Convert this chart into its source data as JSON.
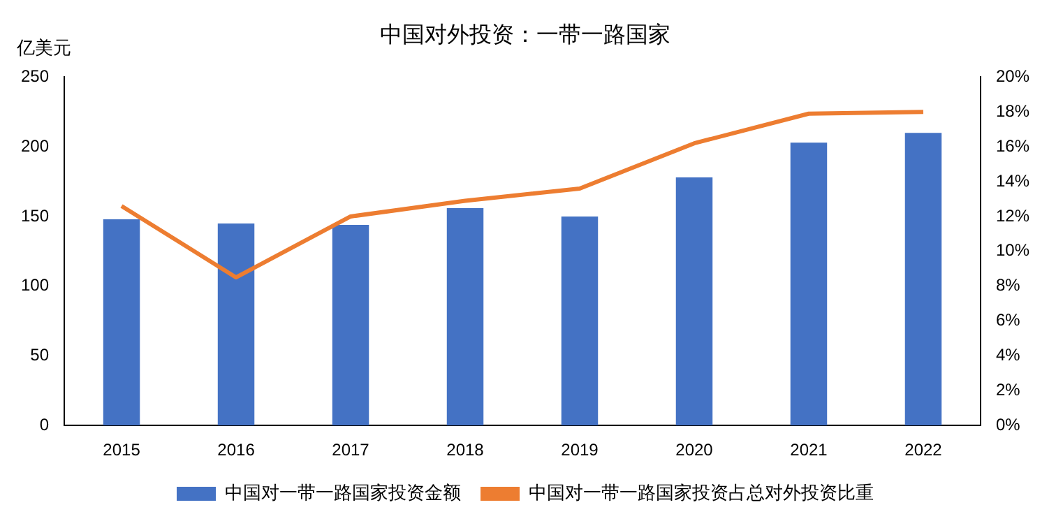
{
  "chart_data": {
    "type": "bar",
    "title": "中国对外投资：一带一路国家",
    "ylabel": "亿美元",
    "categories": [
      "2015",
      "2016",
      "2017",
      "2018",
      "2019",
      "2020",
      "2021",
      "2022"
    ],
    "series": [
      {
        "name": "中国对一带一路国家投资金额",
        "color": "#4472c4",
        "values": [
          148,
          145,
          144,
          156,
          150,
          178,
          203,
          210
        ]
      },
      {
        "name": "中国对一带一路国家投资占总对外投资比重",
        "type": "line",
        "axis": "y2",
        "color": "#ed7d31",
        "values": [
          12.6,
          8.5,
          12.0,
          12.9,
          13.6,
          16.2,
          17.9,
          18.0
        ]
      }
    ],
    "ylim": [
      0,
      250
    ],
    "yticks": [
      0,
      50,
      100,
      150,
      200,
      250
    ],
    "y2lim": [
      0,
      20
    ],
    "y2ticks": [
      {
        "value": 0,
        "label": "0%"
      },
      {
        "value": 2,
        "label": "2%"
      },
      {
        "value": 4,
        "label": "4%"
      },
      {
        "value": 6,
        "label": "6%"
      },
      {
        "value": 8,
        "label": "8%"
      },
      {
        "value": 10,
        "label": "10%"
      },
      {
        "value": 12,
        "label": "12%"
      },
      {
        "value": 14,
        "label": "14%"
      },
      {
        "value": 16,
        "label": "16%"
      },
      {
        "value": 18,
        "label": "18%"
      },
      {
        "value": 20,
        "label": "20%"
      }
    ],
    "legend": "bottom",
    "grid": false,
    "marker": "none"
  }
}
